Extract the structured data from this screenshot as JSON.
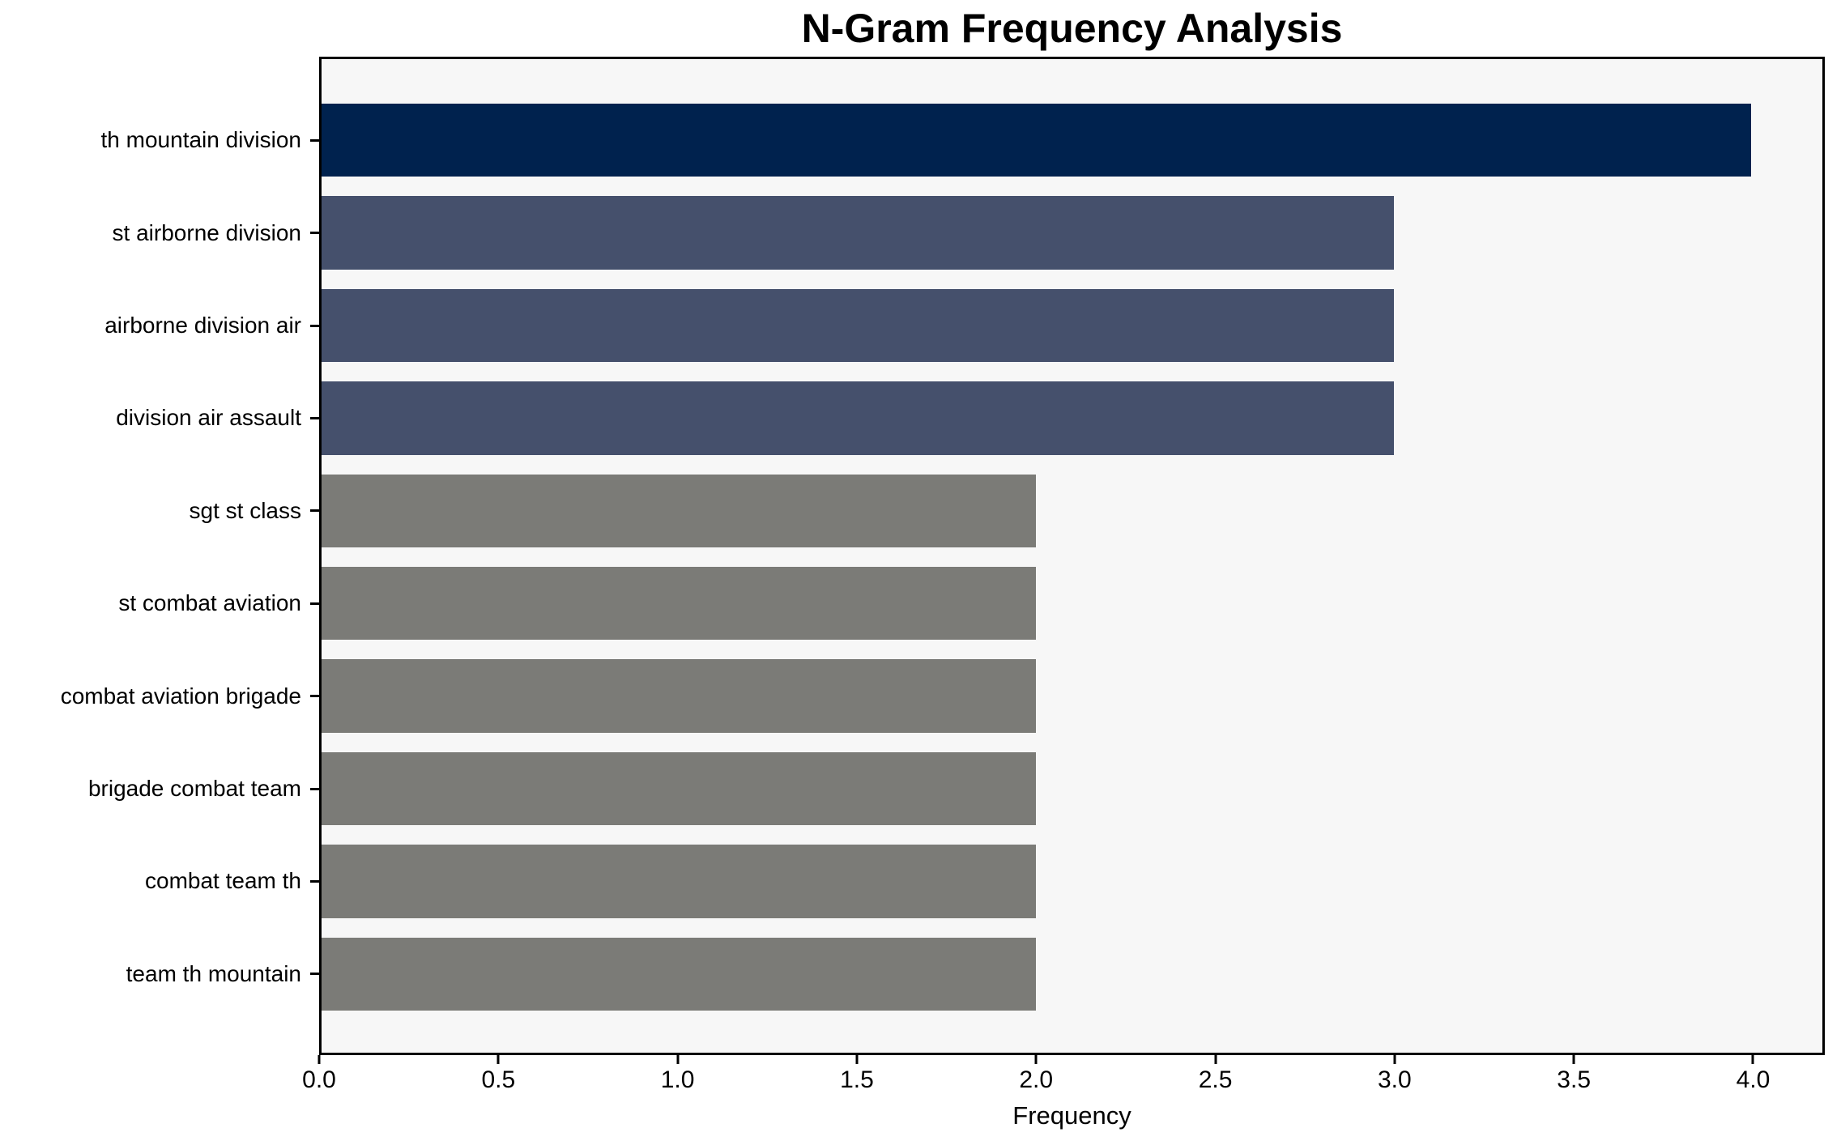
{
  "chart_data": {
    "type": "bar",
    "orientation": "horizontal",
    "title": "N-Gram Frequency Analysis",
    "xlabel": "Frequency",
    "ylabel": "",
    "categories": [
      "th mountain division",
      "st airborne division",
      "airborne division air",
      "division air assault",
      "sgt st class",
      "st combat aviation",
      "combat aviation brigade",
      "brigade combat team",
      "combat team th",
      "team th mountain"
    ],
    "values": [
      4,
      3,
      3,
      3,
      2,
      2,
      2,
      2,
      2,
      2
    ],
    "bar_colors": [
      "#00224e",
      "#45506c",
      "#45506c",
      "#45506c",
      "#7b7b77",
      "#7b7b77",
      "#7b7b77",
      "#7b7b77",
      "#7b7b77",
      "#7b7b77"
    ],
    "xlim": [
      0,
      4.2
    ],
    "x_ticks": [
      "0.0",
      "0.5",
      "1.0",
      "1.5",
      "2.0",
      "2.5",
      "3.0",
      "3.5",
      "4.0"
    ],
    "plot_background": "#f7f7f7",
    "figure_background": "#ffffff",
    "axis_color": "#000000",
    "grid": false,
    "legend": null
  }
}
